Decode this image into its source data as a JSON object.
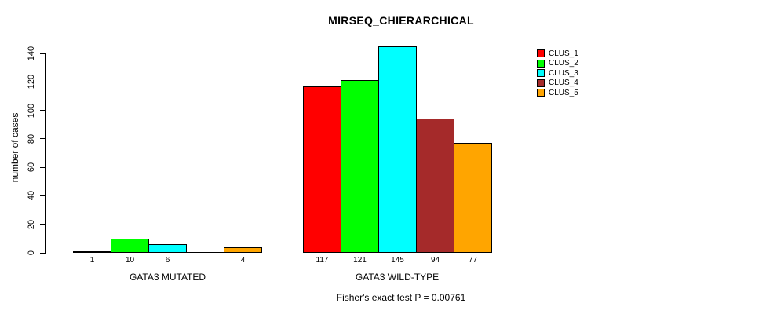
{
  "title": "MIRSEQ_CHIERARCHICAL",
  "footer": "Fisher's exact test P = 0.00761",
  "y_axis": {
    "label": "number of cases",
    "ticks": [
      0,
      20,
      40,
      60,
      80,
      100,
      120,
      140
    ]
  },
  "legend": {
    "position": "top-right",
    "entries": [
      {
        "label": "CLUS_1",
        "color": "#FF0000"
      },
      {
        "label": "CLUS_2",
        "color": "#00FF00"
      },
      {
        "label": "CLUS_3",
        "color": "#00FFFF"
      },
      {
        "label": "CLUS_4",
        "color": "#A52A2A"
      },
      {
        "label": "CLUS_5",
        "color": "#FFA500"
      }
    ]
  },
  "chart_data": {
    "type": "bar",
    "title": "MIRSEQ_CHIERARCHICAL",
    "xlabel": "",
    "ylabel": "number of cases",
    "ylim": [
      0,
      145
    ],
    "grid": false,
    "legend_position": "top-right",
    "categories": [
      "GATA3 MUTATED",
      "GATA3 WILD-TYPE"
    ],
    "series": [
      {
        "name": "CLUS_1",
        "color": "#FF0000",
        "values": [
          1,
          117
        ],
        "value_labels": [
          "1",
          "117"
        ]
      },
      {
        "name": "CLUS_2",
        "color": "#00FF00",
        "values": [
          10,
          121
        ],
        "value_labels": [
          "10",
          "121"
        ]
      },
      {
        "name": "CLUS_3",
        "color": "#00FFFF",
        "values": [
          6,
          145
        ],
        "value_labels": [
          "6",
          "145"
        ]
      },
      {
        "name": "CLUS_4",
        "color": "#A52A2A",
        "values": [
          0,
          94
        ],
        "value_labels": [
          "",
          "94"
        ]
      },
      {
        "name": "CLUS_5",
        "color": "#FFA500",
        "values": [
          4,
          77
        ],
        "value_labels": [
          "4",
          "77"
        ]
      }
    ],
    "annotation": "Fisher's exact test P = 0.00761"
  }
}
